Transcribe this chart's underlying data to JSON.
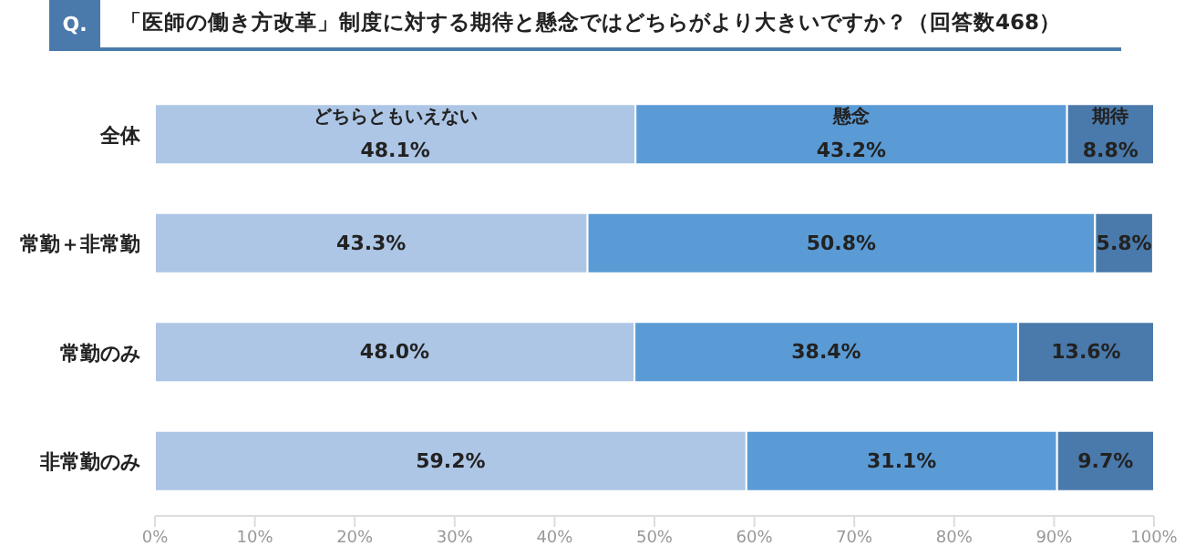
{
  "chart_data": {
    "type": "bar",
    "orientation": "horizontal",
    "stacked": true,
    "title": "「医師の働き方改革」制度に対する期待と懸念ではどちらがより大きいですか？（回答数468）",
    "annotations": [
      "Q."
    ],
    "categories": [
      "全体",
      "常勤＋非常勤",
      "常勤のみ",
      "非常勤のみ"
    ],
    "series": [
      {
        "name": "どちらともいえない",
        "color": "#adc6e6",
        "values": [
          48.1,
          43.3,
          48.0,
          59.2
        ],
        "value_labels": [
          "48.1%",
          "43.3%",
          "48.0%",
          "59.2%"
        ]
      },
      {
        "name": "懸念",
        "color": "#5b9bd5",
        "values": [
          43.2,
          50.8,
          38.4,
          31.1
        ],
        "value_labels": [
          "43.2%",
          "50.8%",
          "38.4%",
          "31.1%"
        ]
      },
      {
        "name": "期待",
        "color": "#4a7aab",
        "values": [
          8.8,
          5.8,
          13.6,
          9.7
        ],
        "value_labels": [
          "8.8%",
          "5.8%",
          "13.6%",
          "9.7%"
        ]
      }
    ],
    "xlim": [
      0,
      100
    ],
    "xticks": [
      {
        "value": 0,
        "label": "0%"
      },
      {
        "value": 10,
        "label": "10%"
      },
      {
        "value": 20,
        "label": "20%"
      },
      {
        "value": 30,
        "label": "30%"
      },
      {
        "value": 40,
        "label": "40%"
      },
      {
        "value": 50,
        "label": "50%"
      },
      {
        "value": 60,
        "label": "60%"
      },
      {
        "value": 70,
        "label": "70%"
      },
      {
        "value": 80,
        "label": "80%"
      },
      {
        "value": 90,
        "label": "90%"
      },
      {
        "value": 100,
        "label": "100%"
      }
    ]
  }
}
